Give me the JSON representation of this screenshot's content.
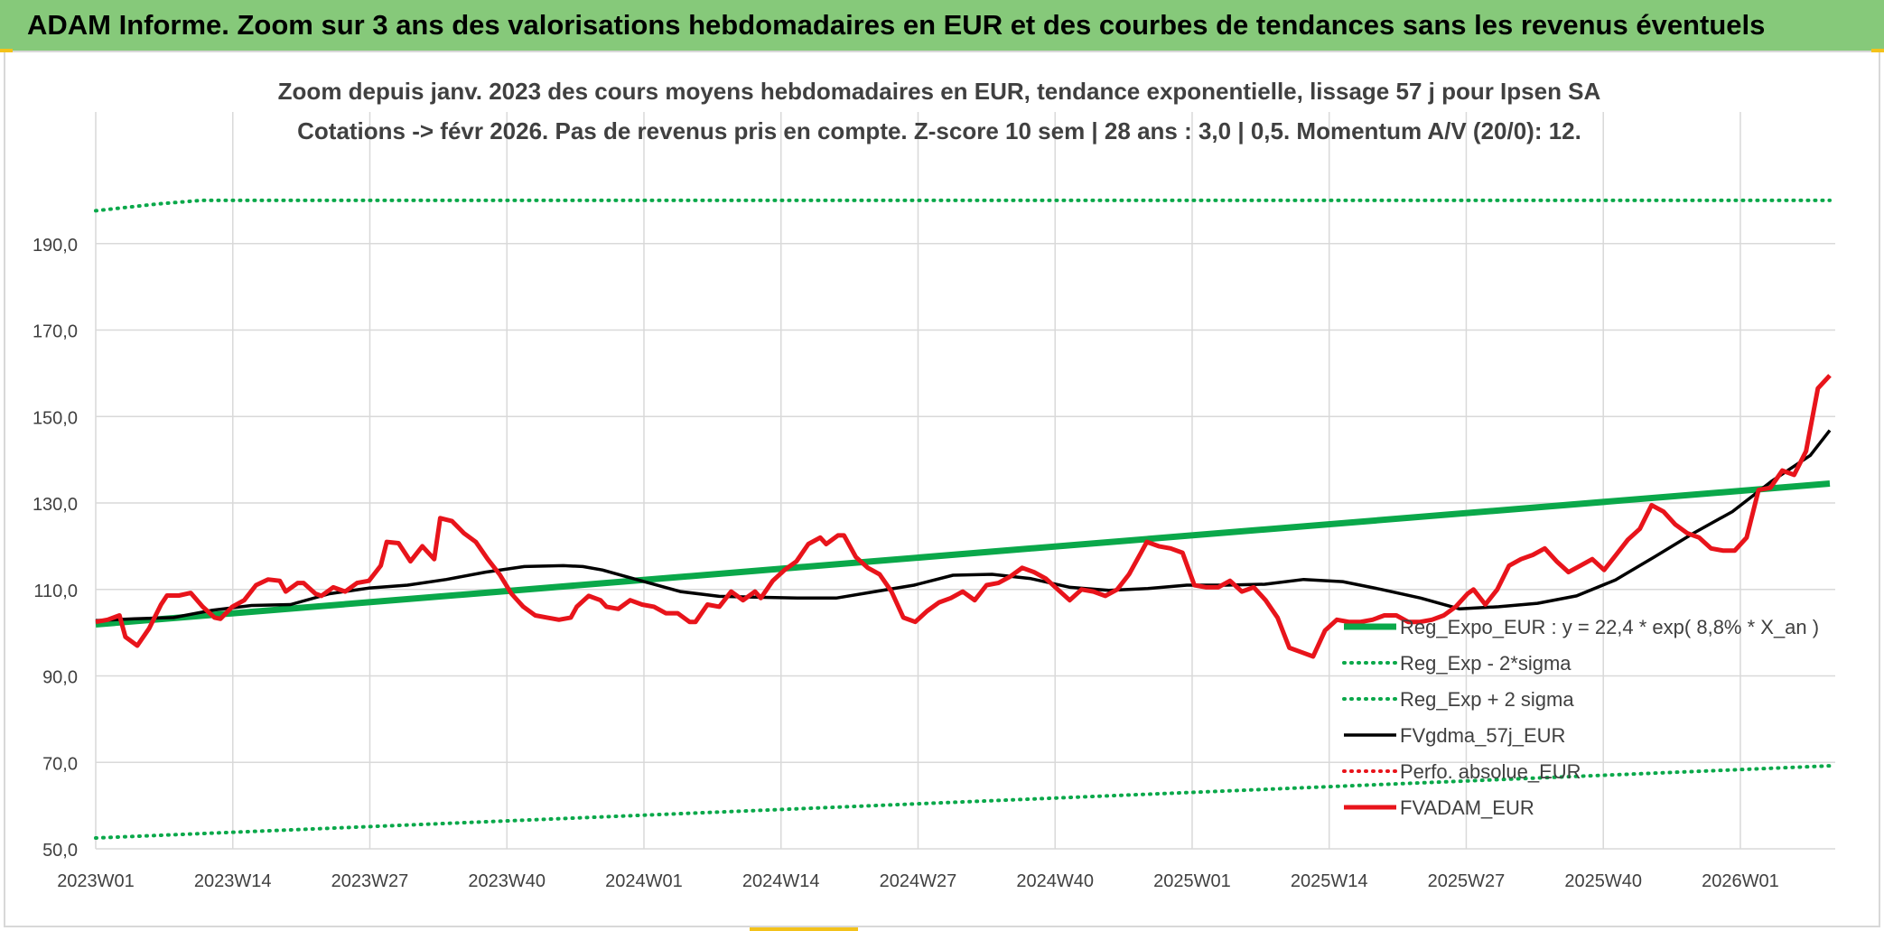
{
  "banner": {
    "title": "ADAM Informe. Zoom sur 3 ans des valorisations hebdomadaires en EUR et des courbes de tendances sans les revenus éventuels"
  },
  "colors": {
    "banner_bg": "#86c97a",
    "trend_green": "#0aa84a",
    "price_red": "#e8141b",
    "gdma_black": "#000000",
    "grid": "#d9d9d9"
  },
  "chart_data": {
    "type": "line",
    "title": "Zoom depuis janv. 2023 des cours moyens hebdomadaires en EUR, tendance exponentielle, lissage 57 j pour Ipsen SA",
    "subtitle": "Cotations -> févr 2026. Pas de revenus pris en compte. Z-score 10 sem | 28 ans : 3,0 | 0,5. Momentum A/V (20/0): 12.",
    "xlabel": "",
    "ylabel": "",
    "ylim": [
      50,
      200
    ],
    "yticks": [
      "50,0",
      "70,0",
      "90,0",
      "110,0",
      "130,0",
      "150,0",
      "170,0",
      "190,0"
    ],
    "yticks_values": [
      50,
      70,
      90,
      110,
      130,
      150,
      170,
      190
    ],
    "xticks": [
      "2023W01",
      "2023W14",
      "2023W27",
      "2023W40",
      "2024W01",
      "2024W14",
      "2024W27",
      "2024W40",
      "2025W01",
      "2025W14",
      "2025W27",
      "2025W40",
      "2026W01"
    ],
    "xticks_index": [
      0,
      13,
      26,
      39,
      52,
      65,
      78,
      91,
      104,
      117,
      130,
      143,
      156
    ],
    "x_count": 165,
    "grid": true,
    "legend_position": "bottom-right",
    "series": [
      {
        "name": "Reg_Expo_EUR : y = 22,4 * exp( 8,8% *  X_an )",
        "style": "solid-thick",
        "color": "#0aa84a",
        "points": [
          [
            0,
            101.9
          ],
          [
            164,
            134.5
          ]
        ]
      },
      {
        "name": "Reg_Exp - 2*sigma",
        "style": "dotted",
        "color": "#0aa84a",
        "points": [
          [
            0,
            52.5
          ],
          [
            164,
            69.2
          ]
        ]
      },
      {
        "name": "Reg_Exp + 2 sigma",
        "style": "dotted",
        "color": "#0aa84a",
        "points": [
          [
            0,
            197.6
          ],
          [
            6,
            199.2
          ],
          [
            10,
            200
          ],
          [
            164,
            200
          ]
        ]
      },
      {
        "name": "FVgdma_57j_EUR",
        "style": "solid",
        "color": "#000000",
        "points": [
          [
            0,
            102.8
          ],
          [
            4,
            103.2
          ],
          [
            8,
            103.5
          ],
          [
            12,
            105.2
          ],
          [
            16,
            106.3
          ],
          [
            20,
            106.5
          ],
          [
            24,
            109.0
          ],
          [
            28,
            110.3
          ],
          [
            32,
            111.0
          ],
          [
            36,
            112.3
          ],
          [
            40,
            114.0
          ],
          [
            44,
            115.3
          ],
          [
            48,
            115.5
          ],
          [
            50,
            115.3
          ],
          [
            52,
            114.5
          ],
          [
            56,
            112.0
          ],
          [
            60,
            109.5
          ],
          [
            64,
            108.4
          ],
          [
            68,
            108.2
          ],
          [
            72,
            108.0
          ],
          [
            76,
            108.0
          ],
          [
            80,
            109.5
          ],
          [
            84,
            111.0
          ],
          [
            88,
            113.3
          ],
          [
            92,
            113.5
          ],
          [
            96,
            112.5
          ],
          [
            100,
            110.5
          ],
          [
            104,
            109.8
          ],
          [
            108,
            110.2
          ],
          [
            112,
            111.0
          ],
          [
            116,
            111.0
          ],
          [
            120,
            111.2
          ],
          [
            124,
            112.3
          ],
          [
            128,
            111.8
          ],
          [
            132,
            110.0
          ],
          [
            136,
            108.0
          ],
          [
            140,
            105.5
          ],
          [
            144,
            106.0
          ],
          [
            148,
            106.8
          ],
          [
            152,
            108.5
          ],
          [
            156,
            112.2
          ],
          [
            160,
            117.5
          ],
          [
            164,
            123.0
          ],
          [
            168,
            128.0
          ],
          [
            172,
            135.0
          ],
          [
            176,
            141.0
          ],
          [
            178,
            146.8
          ]
        ]
      },
      {
        "name": "Perfo. absolue_EUR",
        "style": "dotted",
        "color": "#e8141b",
        "points": []
      },
      {
        "name": "FVADAM_EUR",
        "style": "solid-thick",
        "color": "#e8141b",
        "points": [
          [
            0,
            102.5
          ],
          [
            2,
            103.0
          ],
          [
            4,
            104.0
          ],
          [
            5,
            99.0
          ],
          [
            7,
            97.0
          ],
          [
            9,
            101.0
          ],
          [
            11,
            106.5
          ],
          [
            12,
            108.6
          ],
          [
            14,
            108.6
          ],
          [
            16,
            109.2
          ],
          [
            18,
            106.0
          ],
          [
            20,
            103.5
          ],
          [
            21,
            103.2
          ],
          [
            23,
            106.0
          ],
          [
            25,
            107.5
          ],
          [
            27,
            111.0
          ],
          [
            29,
            112.3
          ],
          [
            31,
            112.0
          ],
          [
            32,
            109.5
          ],
          [
            34,
            111.5
          ],
          [
            35,
            111.5
          ],
          [
            37,
            109.0
          ],
          [
            38,
            108.5
          ],
          [
            40,
            110.5
          ],
          [
            42,
            109.5
          ],
          [
            44,
            111.5
          ],
          [
            46,
            112.0
          ],
          [
            48,
            115.5
          ],
          [
            49,
            121.0
          ],
          [
            51,
            120.7
          ],
          [
            53,
            116.5
          ],
          [
            55,
            120.0
          ],
          [
            57,
            117.0
          ],
          [
            58,
            126.5
          ],
          [
            60,
            125.8
          ],
          [
            62,
            123.0
          ],
          [
            64,
            121.0
          ],
          [
            66,
            117.0
          ],
          [
            68,
            113.5
          ],
          [
            70,
            109.0
          ],
          [
            72,
            106.0
          ],
          [
            74,
            104.0
          ],
          [
            76,
            103.5
          ],
          [
            78,
            103.0
          ],
          [
            80,
            103.5
          ],
          [
            81,
            106.0
          ],
          [
            83,
            108.5
          ],
          [
            85,
            107.5
          ],
          [
            86,
            106.0
          ],
          [
            88,
            105.5
          ],
          [
            90,
            107.5
          ],
          [
            92,
            106.5
          ],
          [
            94,
            106.0
          ],
          [
            96,
            104.5
          ],
          [
            98,
            104.5
          ],
          [
            100,
            102.5
          ],
          [
            101,
            102.5
          ],
          [
            103,
            106.5
          ],
          [
            105,
            106.0
          ],
          [
            107,
            109.5
          ],
          [
            109,
            107.5
          ],
          [
            111,
            109.5
          ],
          [
            112,
            108.0
          ],
          [
            114,
            112.0
          ],
          [
            116,
            114.5
          ],
          [
            118,
            116.5
          ],
          [
            120,
            120.5
          ],
          [
            122,
            122.0
          ],
          [
            123,
            120.5
          ],
          [
            125,
            122.5
          ],
          [
            126,
            122.5
          ],
          [
            128,
            117.5
          ],
          [
            130,
            115.0
          ],
          [
            132,
            113.5
          ],
          [
            134,
            109.5
          ],
          [
            136,
            103.5
          ],
          [
            138,
            102.5
          ],
          [
            140,
            105.0
          ],
          [
            142,
            107.0
          ],
          [
            144,
            108.0
          ],
          [
            146,
            109.5
          ],
          [
            148,
            107.5
          ],
          [
            150,
            111.0
          ],
          [
            152,
            111.5
          ],
          [
            154,
            113.0
          ],
          [
            156,
            115.0
          ],
          [
            158,
            114.0
          ],
          [
            160,
            112.5
          ],
          [
            162,
            110.0
          ],
          [
            164,
            107.5
          ],
          [
            166,
            110.0
          ],
          [
            168,
            109.5
          ],
          [
            170,
            108.5
          ],
          [
            172,
            110.0
          ],
          [
            174,
            113.5
          ],
          [
            176,
            118.5
          ],
          [
            177,
            121.0
          ],
          [
            179,
            120.0
          ],
          [
            181,
            119.5
          ],
          [
            183,
            118.5
          ],
          [
            185,
            111.0
          ],
          [
            187,
            110.5
          ],
          [
            189,
            110.5
          ],
          [
            191,
            112.0
          ],
          [
            193,
            109.5
          ],
          [
            195,
            110.5
          ],
          [
            197,
            107.5
          ],
          [
            199,
            103.5
          ],
          [
            201,
            96.5
          ],
          [
            203,
            95.5
          ],
          [
            205,
            94.5
          ],
          [
            207,
            100.5
          ],
          [
            209,
            103.0
          ],
          [
            211,
            102.5
          ],
          [
            213,
            102.5
          ],
          [
            215,
            103.0
          ],
          [
            217,
            104.0
          ],
          [
            219,
            104.0
          ],
          [
            221,
            102.5
          ],
          [
            223,
            102.5
          ],
          [
            225,
            103.0
          ],
          [
            227,
            104.0
          ],
          [
            229,
            106.0
          ],
          [
            231,
            109.0
          ],
          [
            232,
            110.0
          ],
          [
            234,
            106.5
          ],
          [
            236,
            110.0
          ],
          [
            238,
            115.5
          ],
          [
            240,
            117.0
          ],
          [
            242,
            118.0
          ],
          [
            244,
            119.5
          ],
          [
            246,
            116.5
          ],
          [
            248,
            114.0
          ],
          [
            250,
            115.5
          ],
          [
            252,
            117.0
          ],
          [
            254,
            114.5
          ],
          [
            256,
            118.0
          ],
          [
            258,
            121.5
          ],
          [
            260,
            124.0
          ],
          [
            262,
            129.5
          ],
          [
            264,
            128.0
          ],
          [
            266,
            125.0
          ],
          [
            268,
            123.0
          ],
          [
            270,
            122.0
          ],
          [
            272,
            119.5
          ],
          [
            274,
            119.0
          ],
          [
            276,
            119.0
          ],
          [
            278,
            122.0
          ],
          [
            280,
            133.0
          ],
          [
            282,
            133.5
          ],
          [
            284,
            137.5
          ],
          [
            286,
            136.5
          ],
          [
            288,
            142.0
          ],
          [
            290,
            156.5
          ],
          [
            292,
            159.5
          ]
        ]
      }
    ]
  }
}
